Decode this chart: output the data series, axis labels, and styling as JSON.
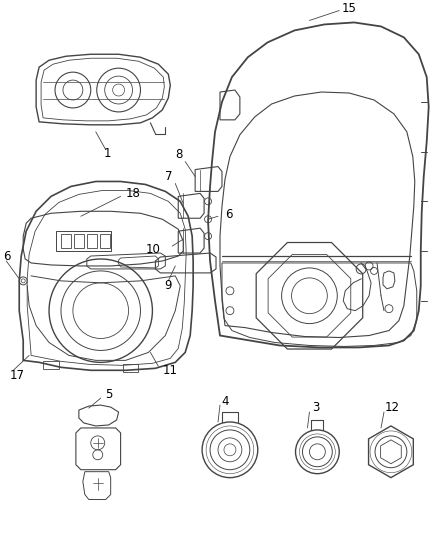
{
  "background_color": "#ffffff",
  "fig_width": 4.38,
  "fig_height": 5.33,
  "dpi": 100,
  "line_color": "#444444",
  "label_color": "#000000",
  "label_fontsize": 8.5,
  "gray_fill": "#e8e8e8",
  "light_gray": "#d0d0d0"
}
